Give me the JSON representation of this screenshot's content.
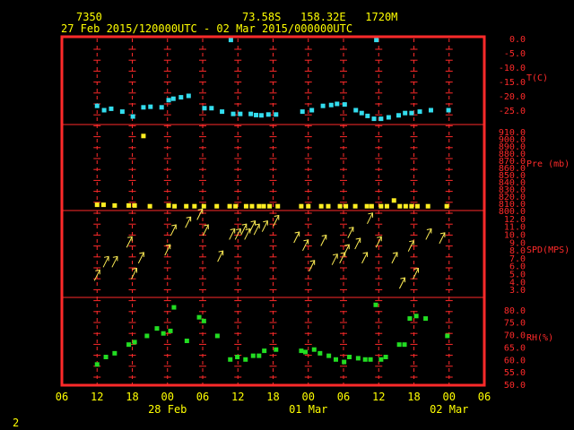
{
  "header": {
    "station": "7350",
    "location": "73.58S   158.32E   1720M",
    "period": "27 Feb 2015/120000UTC - 02 Mar 2015/000000UTC"
  },
  "footer": {
    "page_number": "2"
  },
  "colors": {
    "frame": "#ff2a2a",
    "grid": "#ff2a2a",
    "axis_text": "#ff2a2a",
    "label_text": "#ffff00",
    "temperature": "#33ddee",
    "pressure": "#ffee22",
    "wind": "#ffee55",
    "humidity": "#22dd22",
    "background": "#000000"
  },
  "chart_data": {
    "type": "scatter",
    "x_unit": "hours since 27 Feb 2015 06 UTC",
    "xlim": [
      0,
      72
    ],
    "x_ticks": [
      {
        "x": 0,
        "label": "06"
      },
      {
        "x": 6,
        "label": "12"
      },
      {
        "x": 12,
        "label": "18"
      },
      {
        "x": 18,
        "label": "00"
      },
      {
        "x": 24,
        "label": "06"
      },
      {
        "x": 30,
        "label": "12"
      },
      {
        "x": 36,
        "label": "18"
      },
      {
        "x": 42,
        "label": "00"
      },
      {
        "x": 48,
        "label": "06"
      },
      {
        "x": 54,
        "label": "12"
      },
      {
        "x": 60,
        "label": "18"
      },
      {
        "x": 66,
        "label": "00"
      },
      {
        "x": 72,
        "label": "06"
      }
    ],
    "date_labels": [
      {
        "x": 18,
        "label": "28 Feb"
      },
      {
        "x": 42,
        "label": "01 Mar"
      },
      {
        "x": 66,
        "label": "02 Mar"
      }
    ],
    "panels": [
      {
        "id": "temperature",
        "label": "T(C)",
        "ylim": [
          -30,
          0
        ],
        "ticks": [
          0,
          -5,
          -10,
          -15,
          -20,
          -25
        ],
        "tick_labels": [
          "0.0",
          "-5.0",
          "-10.0",
          "-15.0",
          "-20.0",
          "-25.0"
        ],
        "points": [
          [
            6.0,
            -23.5
          ],
          [
            7.2,
            -25.0
          ],
          [
            8.4,
            -24.5
          ],
          [
            10.3,
            -25.5
          ],
          [
            12.1,
            -27.2
          ],
          [
            13.9,
            -24.0
          ],
          [
            15.1,
            -23.8
          ],
          [
            17.0,
            -24.0
          ],
          [
            18.2,
            -21.5
          ],
          [
            19.0,
            -21.0
          ],
          [
            20.3,
            -20.5
          ],
          [
            21.6,
            -20.0
          ],
          [
            24.3,
            -24.3
          ],
          [
            25.5,
            -24.3
          ],
          [
            27.3,
            -25.5
          ],
          [
            29.2,
            -26.3
          ],
          [
            30.4,
            -26.3
          ],
          [
            32.2,
            -26.3
          ],
          [
            33.1,
            -26.7
          ],
          [
            34.0,
            -26.8
          ],
          [
            35.2,
            -26.5
          ],
          [
            36.5,
            -26.5
          ],
          [
            41.0,
            -25.5
          ],
          [
            42.6,
            -25.0
          ],
          [
            44.5,
            -23.5
          ],
          [
            45.9,
            -23.2
          ],
          [
            46.9,
            -22.8
          ],
          [
            48.2,
            -23.0
          ],
          [
            50.1,
            -25.0
          ],
          [
            51.1,
            -26.0
          ],
          [
            52.1,
            -27.0
          ],
          [
            53.2,
            -28.0
          ],
          [
            54.4,
            -28.0
          ],
          [
            55.7,
            -27.5
          ],
          [
            57.4,
            -26.8
          ],
          [
            58.5,
            -26.0
          ],
          [
            59.6,
            -26.0
          ],
          [
            61.0,
            -25.5
          ],
          [
            62.9,
            -25.0
          ],
          [
            65.9,
            -25.0
          ],
          [
            28.8,
            -0.5
          ],
          [
            53.6,
            -0.5
          ]
        ]
      },
      {
        "id": "pressure",
        "label": "Pre (mb)",
        "ylim": [
          800,
          920
        ],
        "ticks": [
          800,
          810,
          820,
          830,
          840,
          850,
          860,
          870,
          880,
          890,
          900,
          910
        ],
        "tick_labels": [
          "800.0",
          "810.0",
          "820.0",
          "830.0",
          "840.0",
          "850.0",
          "860.0",
          "870.0",
          "880.0",
          "890.0",
          "900.0",
          "910.0"
        ],
        "points": [
          [
            6.0,
            808
          ],
          [
            7.1,
            808
          ],
          [
            9.0,
            807
          ],
          [
            11.4,
            807
          ],
          [
            12.4,
            807
          ],
          [
            15.0,
            806
          ],
          [
            18.2,
            807
          ],
          [
            19.2,
            806
          ],
          [
            21.2,
            806
          ],
          [
            22.6,
            806
          ],
          [
            24.2,
            806
          ],
          [
            26.4,
            806
          ],
          [
            28.6,
            806
          ],
          [
            29.6,
            806
          ],
          [
            31.4,
            806
          ],
          [
            32.4,
            806
          ],
          [
            33.6,
            806
          ],
          [
            34.4,
            806
          ],
          [
            35.4,
            806
          ],
          [
            36.8,
            806
          ],
          [
            40.8,
            806
          ],
          [
            42.0,
            806
          ],
          [
            44.2,
            806
          ],
          [
            45.4,
            806
          ],
          [
            47.4,
            806
          ],
          [
            48.4,
            806
          ],
          [
            50.0,
            806
          ],
          [
            52.0,
            806
          ],
          [
            52.8,
            806
          ],
          [
            54.4,
            806
          ],
          [
            55.4,
            806
          ],
          [
            57.6,
            806
          ],
          [
            58.6,
            806
          ],
          [
            59.6,
            806
          ],
          [
            60.6,
            806
          ],
          [
            62.4,
            806
          ],
          [
            65.6,
            806
          ],
          [
            13.9,
            904
          ],
          [
            56.6,
            814
          ]
        ]
      },
      {
        "id": "wind",
        "label": "SPD(MPS)",
        "ylim": [
          2,
          13
        ],
        "ticks": [
          3,
          4,
          5,
          6,
          7,
          8,
          9,
          10,
          11,
          12
        ],
        "tick_labels": [
          "3.0",
          "4.0",
          "5.0",
          "6.0",
          "7.0",
          "8.0",
          "9.0",
          "10.0",
          "11.0",
          "12.0"
        ],
        "points": [
          [
            6.0,
            4.8
          ],
          [
            7.5,
            6.5
          ],
          [
            9.0,
            6.5
          ],
          [
            11.5,
            9.0
          ],
          [
            12.3,
            5.0
          ],
          [
            13.5,
            7.0
          ],
          [
            18.0,
            8.0
          ],
          [
            19.0,
            10.5
          ],
          [
            21.5,
            11.5
          ],
          [
            23.5,
            12.5
          ],
          [
            24.5,
            10.5
          ],
          [
            27.0,
            7.2
          ],
          [
            29.0,
            10.0
          ],
          [
            30.0,
            10.0
          ],
          [
            31.0,
            10.6
          ],
          [
            31.6,
            10.0
          ],
          [
            32.5,
            11.0
          ],
          [
            33.2,
            10.6
          ],
          [
            34.6,
            11.0
          ],
          [
            36.5,
            11.7
          ],
          [
            40.0,
            9.6
          ],
          [
            41.5,
            8.6
          ],
          [
            42.6,
            6.0
          ],
          [
            44.6,
            9.2
          ],
          [
            46.5,
            6.8
          ],
          [
            47.8,
            7.0
          ],
          [
            48.5,
            8.0
          ],
          [
            49.2,
            10.2
          ],
          [
            50.4,
            8.8
          ],
          [
            51.6,
            7.0
          ],
          [
            52.5,
            12.0
          ],
          [
            54.0,
            9.0
          ],
          [
            56.7,
            7.0
          ],
          [
            58.0,
            3.8
          ],
          [
            59.5,
            8.5
          ],
          [
            60.3,
            5.0
          ],
          [
            62.5,
            10.0
          ],
          [
            64.8,
            9.5
          ]
        ]
      },
      {
        "id": "humidity",
        "label": "RH(%)",
        "ylim": [
          50,
          85
        ],
        "ticks": [
          50,
          55,
          60,
          65,
          70,
          75,
          80
        ],
        "tick_labels": [
          "50.0",
          "55.0",
          "60.0",
          "65.0",
          "70.0",
          "75.0",
          "80.0"
        ],
        "points": [
          [
            6.0,
            58.0
          ],
          [
            7.5,
            61.0
          ],
          [
            9.0,
            62.5
          ],
          [
            11.4,
            66.0
          ],
          [
            12.4,
            67.0
          ],
          [
            14.5,
            69.5
          ],
          [
            16.2,
            72.5
          ],
          [
            17.3,
            70.5
          ],
          [
            18.5,
            71.5
          ],
          [
            19.1,
            81.0
          ],
          [
            21.3,
            67.5
          ],
          [
            23.4,
            77.0
          ],
          [
            24.2,
            75.5
          ],
          [
            26.5,
            69.5
          ],
          [
            28.7,
            60.0
          ],
          [
            29.9,
            61.0
          ],
          [
            31.3,
            60.0
          ],
          [
            32.6,
            61.5
          ],
          [
            33.6,
            61.5
          ],
          [
            34.5,
            63.5
          ],
          [
            36.5,
            64.0
          ],
          [
            40.8,
            63.5
          ],
          [
            41.5,
            63.0
          ],
          [
            43.0,
            64.0
          ],
          [
            44.0,
            62.5
          ],
          [
            45.5,
            61.5
          ],
          [
            46.7,
            60.0
          ],
          [
            48.1,
            59.0
          ],
          [
            49.0,
            61.0
          ],
          [
            50.5,
            60.5
          ],
          [
            51.7,
            60.0
          ],
          [
            52.6,
            60.0
          ],
          [
            53.5,
            82.0
          ],
          [
            54.4,
            60.0
          ],
          [
            55.2,
            61.0
          ],
          [
            57.5,
            66.0
          ],
          [
            58.4,
            66.0
          ],
          [
            59.3,
            76.5
          ],
          [
            60.4,
            77.5
          ],
          [
            62.0,
            76.5
          ],
          [
            65.7,
            69.5
          ]
        ]
      }
    ]
  }
}
